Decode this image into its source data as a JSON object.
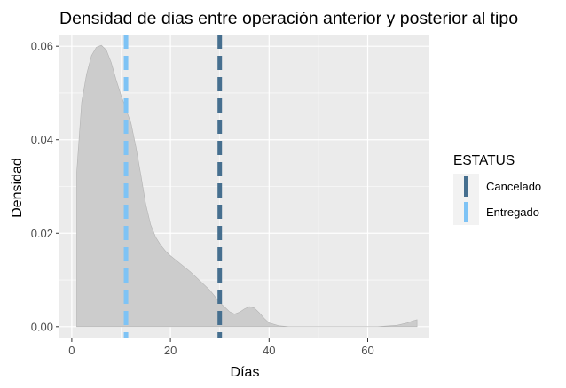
{
  "chart_data": {
    "type": "area",
    "title": "Densidad de dias entre operación anterior y posterior al tipo",
    "xlabel": "Días",
    "ylabel": "Densidad",
    "xlim": [
      -2.5,
      72.5
    ],
    "ylim": [
      -0.0025,
      0.0625
    ],
    "x_ticks": [
      0,
      20,
      40,
      60
    ],
    "x_tick_labels": [
      "0",
      "20",
      "40",
      "60"
    ],
    "y_ticks": [
      0.0,
      0.02,
      0.04,
      0.06
    ],
    "y_tick_labels": [
      "0.00",
      "0.02",
      "0.04",
      "0.06"
    ],
    "grid": true,
    "density": {
      "fill": "#cccccc",
      "stroke": "#b3b3b3",
      "x": [
        1,
        2,
        3,
        4,
        5,
        6,
        7,
        8,
        9,
        10,
        11,
        12,
        13,
        14,
        15,
        16,
        17,
        18,
        19,
        20,
        22,
        24,
        26,
        28,
        30,
        32,
        33,
        34,
        35,
        36,
        37,
        38,
        39,
        40,
        42,
        44,
        50,
        56,
        62,
        66,
        68,
        69,
        70
      ],
      "y": [
        0.033,
        0.048,
        0.054,
        0.058,
        0.0598,
        0.0602,
        0.0592,
        0.0565,
        0.0528,
        0.0495,
        0.0465,
        0.0436,
        0.0385,
        0.0325,
        0.0262,
        0.0218,
        0.0192,
        0.0175,
        0.0162,
        0.0152,
        0.0135,
        0.0118,
        0.0098,
        0.0078,
        0.0052,
        0.0032,
        0.0027,
        0.0031,
        0.0038,
        0.0043,
        0.004,
        0.003,
        0.0018,
        0.0008,
        0.0002,
        0.0,
        0.0,
        0.0,
        0.0,
        0.0003,
        0.0008,
        0.0012,
        0.0015
      ]
    },
    "vlines": [
      {
        "name": "Cancelado",
        "x": 30,
        "color": "#466f8f"
      },
      {
        "name": "Entregado",
        "x": 11,
        "color": "#7ec3f5"
      }
    ],
    "legend": {
      "title": "ESTATUS",
      "placement": "right",
      "items": [
        {
          "label": "Cancelado",
          "color": "#466f8f"
        },
        {
          "label": "Entregado",
          "color": "#7ec3f5"
        }
      ]
    },
    "colors": {
      "panel": "#ebebeb",
      "grid_major": "#ffffff",
      "tick_text": "#4d4d4d",
      "legend_key_bg": "#f2f2f2"
    }
  }
}
